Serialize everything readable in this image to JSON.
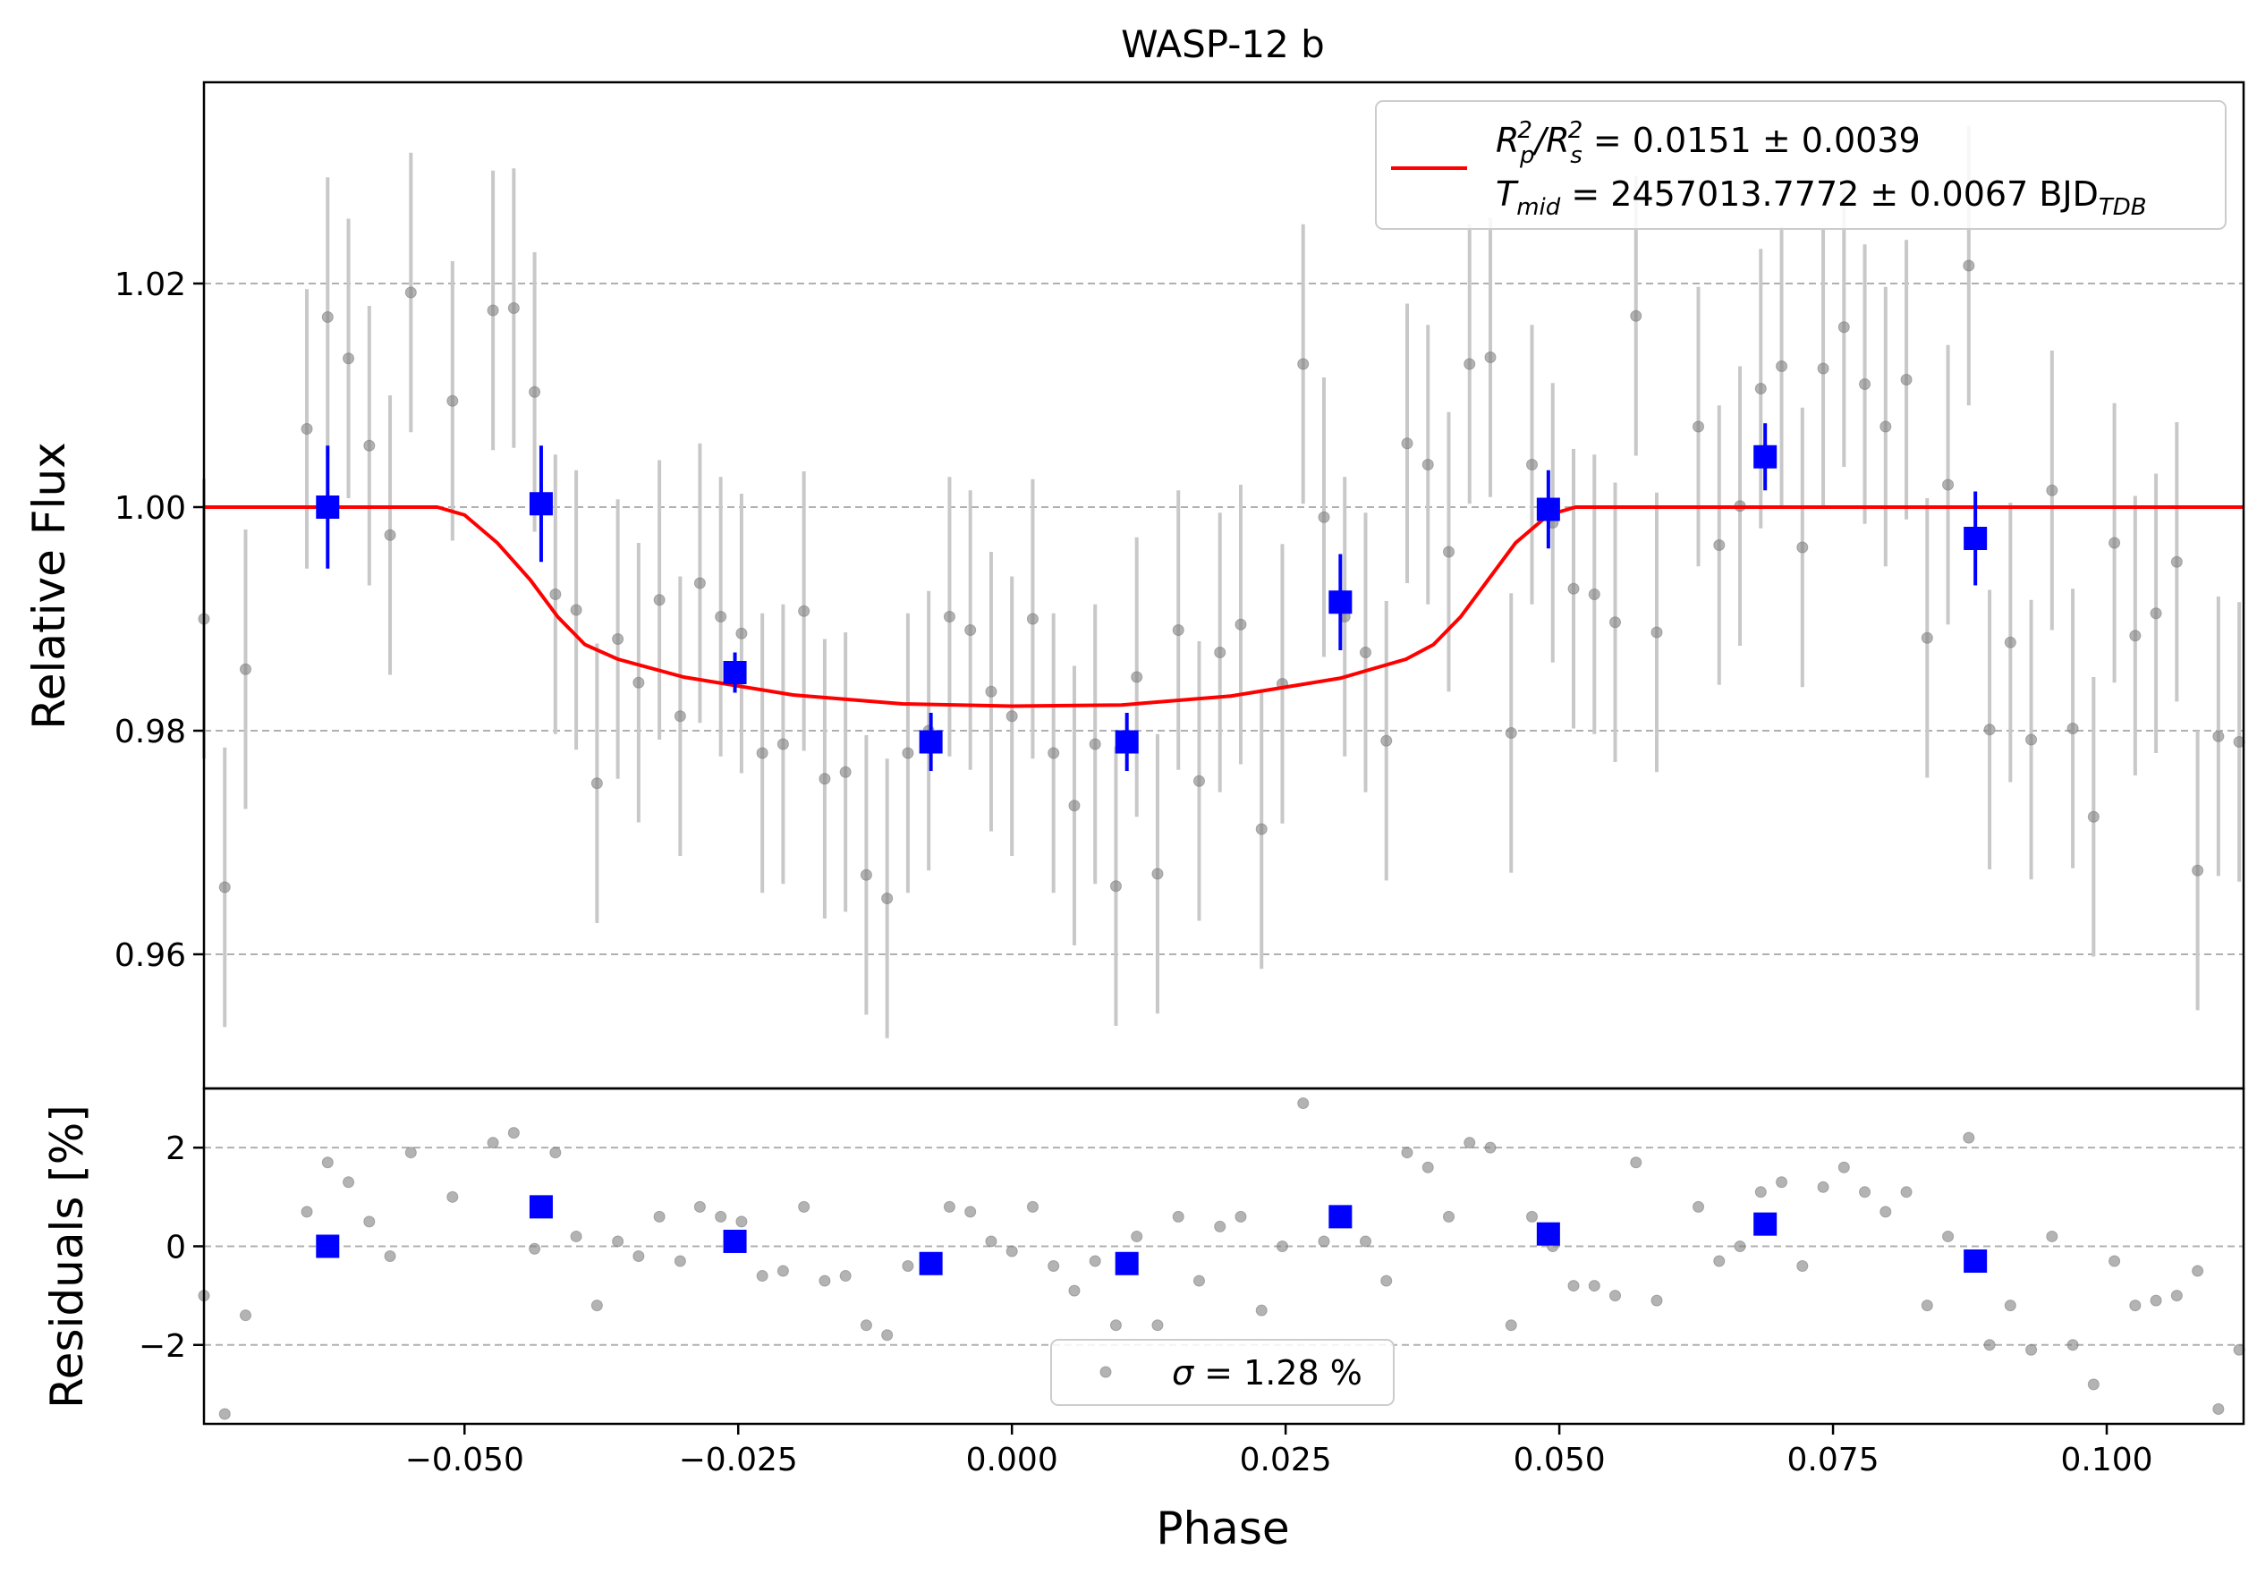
{
  "chart_data": [
    {
      "type": "scatter",
      "panel": "main",
      "title": "WASP-12 b",
      "xlabel": "",
      "ylabel": "Relative Flux",
      "xlim": [
        -0.0738,
        0.1125
      ],
      "ylim": [
        0.948,
        1.038
      ],
      "yticks": [
        0.96,
        0.98,
        1.0,
        1.02
      ],
      "ytick_labels": [
        "0.96",
        "0.98",
        "1.00",
        "1.02"
      ],
      "grid": "horizontal dashed",
      "legend": {
        "placement": "top-right",
        "line1": {
          "prefix": "R",
          "sub1": "p",
          "sup1": "2",
          "mid": "/R",
          "sub2": "s",
          "sup2": "2",
          "rest": " = 0.0151 ± 0.0039"
        },
        "line2": {
          "prefix": "T",
          "sub1": "mid",
          "rest": " = 2457013.7772 ± 0.0067 BJD",
          "sub2": "TDB"
        }
      },
      "model_line": {
        "color": "#ff0000",
        "x": [
          -0.0738,
          -0.0525,
          -0.05,
          -0.047,
          -0.044,
          -0.0415,
          -0.039,
          -0.036,
          -0.03,
          -0.02,
          -0.01,
          0.0,
          0.01,
          0.02,
          0.03,
          0.036,
          0.0385,
          0.041,
          0.0435,
          0.046,
          0.049,
          0.0515,
          0.053,
          0.1125
        ],
        "y": [
          1.0,
          1.0,
          0.9993,
          0.9968,
          0.9935,
          0.9902,
          0.9877,
          0.9864,
          0.9848,
          0.9832,
          0.9824,
          0.9822,
          0.9823,
          0.9831,
          0.9847,
          0.9864,
          0.9877,
          0.9902,
          0.9935,
          0.9968,
          0.9993,
          1.0,
          1.0,
          1.0
        ]
      },
      "series": [
        {
          "name": "data",
          "color": "#808080",
          "x": [
            -0.0738,
            -0.0719,
            -0.07,
            -0.0644,
            -0.0625,
            -0.0606,
            -0.0587,
            -0.0568,
            -0.0549,
            -0.0511,
            -0.0474,
            -0.0455,
            -0.0436,
            -0.0417,
            -0.0398,
            -0.0379,
            -0.036,
            -0.0341,
            -0.0322,
            -0.0303,
            -0.0285,
            -0.0266,
            -0.0247,
            -0.0228,
            -0.0209,
            -0.019,
            -0.0171,
            -0.0152,
            -0.0133,
            -0.0114,
            -0.0095,
            -0.0076,
            -0.0057,
            -0.0038,
            -0.0019,
            0.0,
            0.0019,
            0.0038,
            0.0057,
            0.0076,
            0.0095,
            0.0114,
            0.0133,
            0.0152,
            0.0171,
            0.019,
            0.0209,
            0.0228,
            0.0247,
            0.0266,
            0.0285,
            0.0304,
            0.0323,
            0.0342,
            0.0361,
            0.038,
            0.0399,
            0.0418,
            0.0437,
            0.0456,
            0.0475,
            0.0494,
            0.0513,
            0.0532,
            0.0551,
            0.057,
            0.0589,
            0.0627,
            0.0646,
            0.0665,
            0.0684,
            0.0703,
            0.0722,
            0.0741,
            0.076,
            0.0779,
            0.0798,
            0.0817,
            0.0836,
            0.0855,
            0.0874,
            0.0893,
            0.0912,
            0.0931,
            0.095,
            0.0969,
            0.0988,
            0.1007,
            0.1026,
            0.1045,
            0.1064,
            0.1083,
            0.1102,
            0.1121
          ],
          "y": [
            0.99,
            0.966,
            0.9855,
            1.007,
            1.017,
            1.0133,
            1.0055,
            0.9975,
            1.0192,
            1.0095,
            1.0176,
            1.0178,
            1.0103,
            0.9922,
            0.9908,
            0.9753,
            0.9882,
            0.9843,
            0.9917,
            0.9813,
            0.9932,
            0.9902,
            0.9887,
            0.978,
            0.9788,
            0.9907,
            0.9757,
            0.9763,
            0.9671,
            0.965,
            0.978,
            0.98,
            0.9902,
            0.989,
            0.9835,
            0.9813,
            0.99,
            0.978,
            0.9733,
            0.9788,
            0.9661,
            0.9848,
            0.9672,
            0.989,
            0.9755,
            0.987,
            0.9895,
            0.9712,
            0.9842,
            1.0128,
            0.9991,
            0.9902,
            0.987,
            0.9791,
            1.0057,
            1.0038,
            0.996,
            1.0128,
            1.0134,
            0.9798,
            1.0038,
            0.9986,
            0.9927,
            0.9922,
            0.9897,
            1.0171,
            0.9888,
            1.0072,
            0.9966,
            1.0001,
            1.0106,
            1.0126,
            0.9964,
            1.0124,
            1.0161,
            1.011,
            1.0072,
            1.0114,
            0.9883,
            1.002,
            1.0216,
            0.9801,
            0.9879,
            0.9792,
            1.0015,
            0.9802,
            0.9723,
            0.9968,
            0.9885,
            0.9905,
            0.9951,
            0.9675,
            0.9795,
            0.979
          ],
          "yerr": 0.0125
        },
        {
          "name": "binned",
          "color": "#0000ff",
          "x": [
            -0.0625,
            -0.043,
            -0.0253,
            -0.0074,
            0.0105,
            0.03,
            0.049,
            0.0688,
            0.088
          ],
          "y": [
            1.0,
            1.0003,
            0.9852,
            0.979,
            0.979,
            0.9915,
            0.9998,
            1.0045,
            0.9972
          ],
          "yerr": [
            0.0055,
            0.0052,
            0.0018,
            0.0026,
            0.0026,
            0.0043,
            0.0035,
            0.003,
            0.0042
          ]
        }
      ]
    },
    {
      "type": "scatter",
      "panel": "residuals",
      "xlabel": "Phase",
      "ylabel": "Residuals [%]",
      "xlim": [
        -0.0738,
        0.1125
      ],
      "ylim": [
        -3.6,
        3.2
      ],
      "xticks": [
        -0.05,
        -0.025,
        0.0,
        0.025,
        0.05,
        0.075,
        0.1
      ],
      "xtick_labels": [
        "−0.050",
        "−0.025",
        "0.000",
        "0.025",
        "0.050",
        "0.075",
        "0.100"
      ],
      "yticks": [
        -2,
        0,
        2
      ],
      "ytick_labels": [
        "−2",
        "0",
        "2"
      ],
      "grid": "horizontal dashed",
      "legend": {
        "placement": "bottom-center",
        "text_symbol": "σ",
        "text_value": " = 1.28 %"
      },
      "series": [
        {
          "name": "residuals",
          "color": "#808080",
          "x": [
            -0.0738,
            -0.07,
            -0.0719,
            -0.0644,
            -0.0625,
            -0.0606,
            -0.0587,
            -0.0568,
            -0.0549,
            -0.0511,
            -0.0474,
            -0.0455,
            -0.0436,
            -0.0417,
            -0.0398,
            -0.0379,
            -0.036,
            -0.0341,
            -0.0322,
            -0.0303,
            -0.0285,
            -0.0266,
            -0.0247,
            -0.0228,
            -0.0209,
            -0.019,
            -0.0171,
            -0.0152,
            -0.0133,
            -0.0114,
            -0.0095,
            -0.0076,
            -0.0057,
            -0.0038,
            -0.0019,
            0.0,
            0.0019,
            0.0038,
            0.0057,
            0.0076,
            0.0095,
            0.0114,
            0.0133,
            0.0152,
            0.0171,
            0.019,
            0.0209,
            0.0228,
            0.0247,
            0.0266,
            0.0285,
            0.0304,
            0.0323,
            0.0342,
            0.0361,
            0.038,
            0.0399,
            0.0418,
            0.0437,
            0.0456,
            0.0475,
            0.0494,
            0.0513,
            0.0532,
            0.0551,
            0.057,
            0.0589,
            0.0627,
            0.0646,
            0.0665,
            0.0684,
            0.0703,
            0.0722,
            0.0741,
            0.076,
            0.0779,
            0.0798,
            0.0817,
            0.0836,
            0.0855,
            0.0874,
            0.0893,
            0.0912,
            0.0931,
            0.095,
            0.0969,
            0.0988,
            0.1007,
            0.1026,
            0.1045,
            0.1064,
            0.1083,
            0.1102,
            0.1121
          ],
          "y": [
            -1.0,
            -1.4,
            -3.4,
            0.7,
            1.7,
            1.3,
            0.5,
            -0.2,
            1.9,
            1.0,
            2.1,
            2.3,
            -0.05,
            1.9,
            0.2,
            -1.2,
            0.1,
            -0.2,
            0.6,
            -0.3,
            0.8,
            0.6,
            0.5,
            -0.6,
            -0.5,
            0.8,
            -0.7,
            -0.6,
            -1.6,
            -1.8,
            -0.4,
            -0.3,
            0.8,
            0.7,
            0.1,
            -0.1,
            0.8,
            -0.4,
            -0.9,
            -0.3,
            -1.6,
            0.2,
            -1.6,
            0.6,
            -0.7,
            0.4,
            0.6,
            -1.3,
            0.0,
            2.9,
            0.1,
            0.6,
            0.1,
            -0.7,
            1.9,
            1.6,
            0.6,
            2.1,
            2.0,
            -1.6,
            0.6,
            0.0,
            -0.8,
            -0.8,
            -1.0,
            1.7,
            -1.1,
            0.8,
            -0.3,
            0.0,
            1.1,
            1.3,
            -0.4,
            1.2,
            1.6,
            1.1,
            0.7,
            1.1,
            -1.2,
            0.2,
            2.2,
            -2.0,
            -1.2,
            -2.1,
            0.2,
            -2.0,
            -2.8,
            -0.3,
            -1.2,
            -1.1,
            -1.0,
            -0.5,
            -3.3,
            -2.1
          ]
        },
        {
          "name": "binned residuals",
          "color": "#0000ff",
          "x": [
            -0.0625,
            -0.043,
            -0.0253,
            -0.0074,
            0.0105,
            0.03,
            0.049,
            0.0688,
            0.088
          ],
          "y": [
            0.0,
            0.8,
            0.1,
            -0.35,
            -0.35,
            0.6,
            0.25,
            0.45,
            -0.3
          ]
        }
      ]
    }
  ]
}
